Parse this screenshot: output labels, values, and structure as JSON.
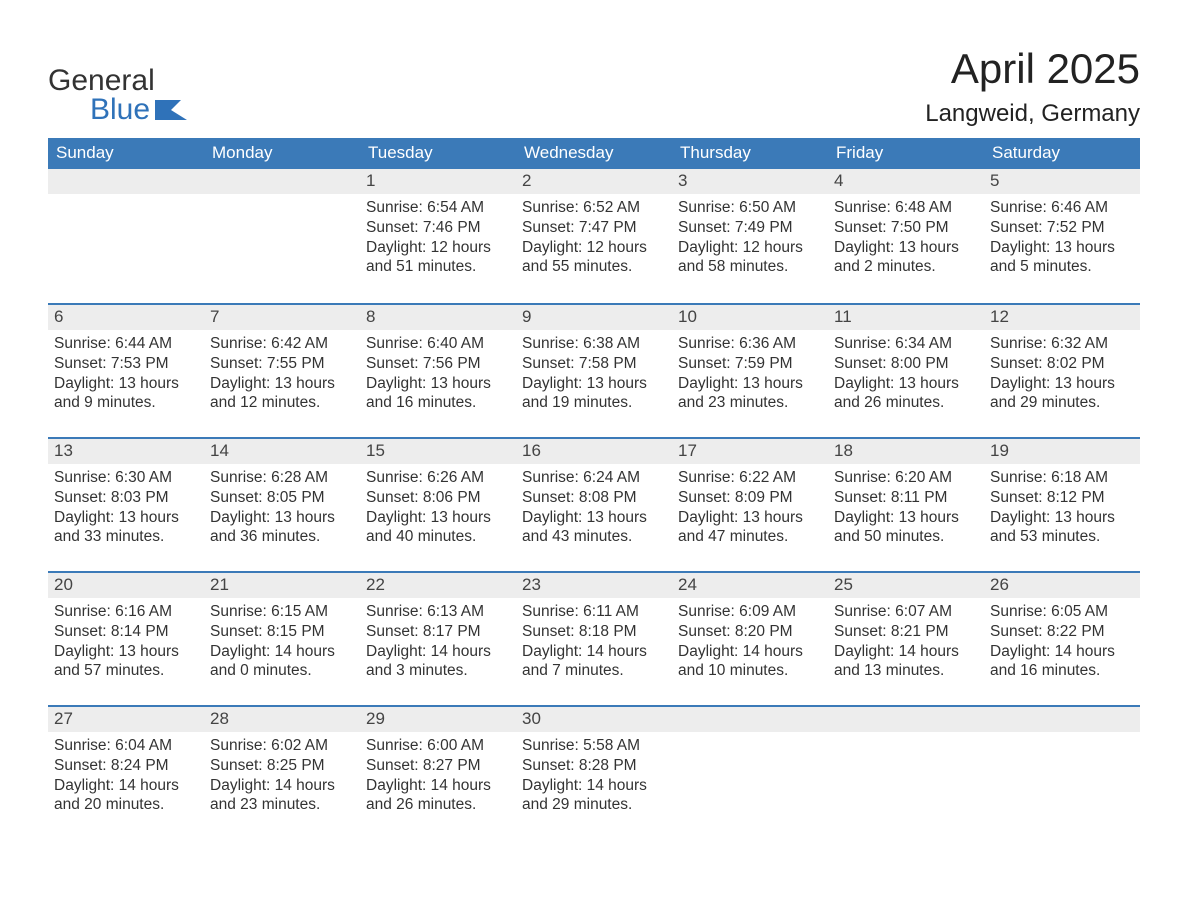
{
  "logo": {
    "line1": "General",
    "line2": "Blue",
    "line1_color": "#333333",
    "line2_color": "#2f72b9",
    "flag_color": "#2f72b9"
  },
  "title": {
    "month_year": "April 2025",
    "location": "Langweid, Germany"
  },
  "styling": {
    "header_bg": "#3b7ab8",
    "header_text_color": "#ffffff",
    "day_header_bg": "#ededed",
    "day_header_border": "#3b7ab8",
    "body_text_color": "#333333",
    "day_number_color": "#444444",
    "page_bg": "#ffffff",
    "title_fontsize": 42,
    "location_fontsize": 24,
    "header_fontsize": 17,
    "daynum_fontsize": 17,
    "body_fontsize": 15.5
  },
  "calendar": {
    "columns": [
      "Sunday",
      "Monday",
      "Tuesday",
      "Wednesday",
      "Thursday",
      "Friday",
      "Saturday"
    ],
    "weeks": [
      [
        null,
        null,
        {
          "day": "1",
          "sunrise": "6:54 AM",
          "sunset": "7:46 PM",
          "daylight": "12 hours and 51 minutes."
        },
        {
          "day": "2",
          "sunrise": "6:52 AM",
          "sunset": "7:47 PM",
          "daylight": "12 hours and 55 minutes."
        },
        {
          "day": "3",
          "sunrise": "6:50 AM",
          "sunset": "7:49 PM",
          "daylight": "12 hours and 58 minutes."
        },
        {
          "day": "4",
          "sunrise": "6:48 AM",
          "sunset": "7:50 PM",
          "daylight": "13 hours and 2 minutes."
        },
        {
          "day": "5",
          "sunrise": "6:46 AM",
          "sunset": "7:52 PM",
          "daylight": "13 hours and 5 minutes."
        }
      ],
      [
        {
          "day": "6",
          "sunrise": "6:44 AM",
          "sunset": "7:53 PM",
          "daylight": "13 hours and 9 minutes."
        },
        {
          "day": "7",
          "sunrise": "6:42 AM",
          "sunset": "7:55 PM",
          "daylight": "13 hours and 12 minutes."
        },
        {
          "day": "8",
          "sunrise": "6:40 AM",
          "sunset": "7:56 PM",
          "daylight": "13 hours and 16 minutes."
        },
        {
          "day": "9",
          "sunrise": "6:38 AM",
          "sunset": "7:58 PM",
          "daylight": "13 hours and 19 minutes."
        },
        {
          "day": "10",
          "sunrise": "6:36 AM",
          "sunset": "7:59 PM",
          "daylight": "13 hours and 23 minutes."
        },
        {
          "day": "11",
          "sunrise": "6:34 AM",
          "sunset": "8:00 PM",
          "daylight": "13 hours and 26 minutes."
        },
        {
          "day": "12",
          "sunrise": "6:32 AM",
          "sunset": "8:02 PM",
          "daylight": "13 hours and 29 minutes."
        }
      ],
      [
        {
          "day": "13",
          "sunrise": "6:30 AM",
          "sunset": "8:03 PM",
          "daylight": "13 hours and 33 minutes."
        },
        {
          "day": "14",
          "sunrise": "6:28 AM",
          "sunset": "8:05 PM",
          "daylight": "13 hours and 36 minutes."
        },
        {
          "day": "15",
          "sunrise": "6:26 AM",
          "sunset": "8:06 PM",
          "daylight": "13 hours and 40 minutes."
        },
        {
          "day": "16",
          "sunrise": "6:24 AM",
          "sunset": "8:08 PM",
          "daylight": "13 hours and 43 minutes."
        },
        {
          "day": "17",
          "sunrise": "6:22 AM",
          "sunset": "8:09 PM",
          "daylight": "13 hours and 47 minutes."
        },
        {
          "day": "18",
          "sunrise": "6:20 AM",
          "sunset": "8:11 PM",
          "daylight": "13 hours and 50 minutes."
        },
        {
          "day": "19",
          "sunrise": "6:18 AM",
          "sunset": "8:12 PM",
          "daylight": "13 hours and 53 minutes."
        }
      ],
      [
        {
          "day": "20",
          "sunrise": "6:16 AM",
          "sunset": "8:14 PM",
          "daylight": "13 hours and 57 minutes."
        },
        {
          "day": "21",
          "sunrise": "6:15 AM",
          "sunset": "8:15 PM",
          "daylight": "14 hours and 0 minutes."
        },
        {
          "day": "22",
          "sunrise": "6:13 AM",
          "sunset": "8:17 PM",
          "daylight": "14 hours and 3 minutes."
        },
        {
          "day": "23",
          "sunrise": "6:11 AM",
          "sunset": "8:18 PM",
          "daylight": "14 hours and 7 minutes."
        },
        {
          "day": "24",
          "sunrise": "6:09 AM",
          "sunset": "8:20 PM",
          "daylight": "14 hours and 10 minutes."
        },
        {
          "day": "25",
          "sunrise": "6:07 AM",
          "sunset": "8:21 PM",
          "daylight": "14 hours and 13 minutes."
        },
        {
          "day": "26",
          "sunrise": "6:05 AM",
          "sunset": "8:22 PM",
          "daylight": "14 hours and 16 minutes."
        }
      ],
      [
        {
          "day": "27",
          "sunrise": "6:04 AM",
          "sunset": "8:24 PM",
          "daylight": "14 hours and 20 minutes."
        },
        {
          "day": "28",
          "sunrise": "6:02 AM",
          "sunset": "8:25 PM",
          "daylight": "14 hours and 23 minutes."
        },
        {
          "day": "29",
          "sunrise": "6:00 AM",
          "sunset": "8:27 PM",
          "daylight": "14 hours and 26 minutes."
        },
        {
          "day": "30",
          "sunrise": "5:58 AM",
          "sunset": "8:28 PM",
          "daylight": "14 hours and 29 minutes."
        },
        null,
        null,
        null
      ]
    ],
    "labels": {
      "sunrise": "Sunrise:",
      "sunset": "Sunset:",
      "daylight": "Daylight:"
    }
  }
}
